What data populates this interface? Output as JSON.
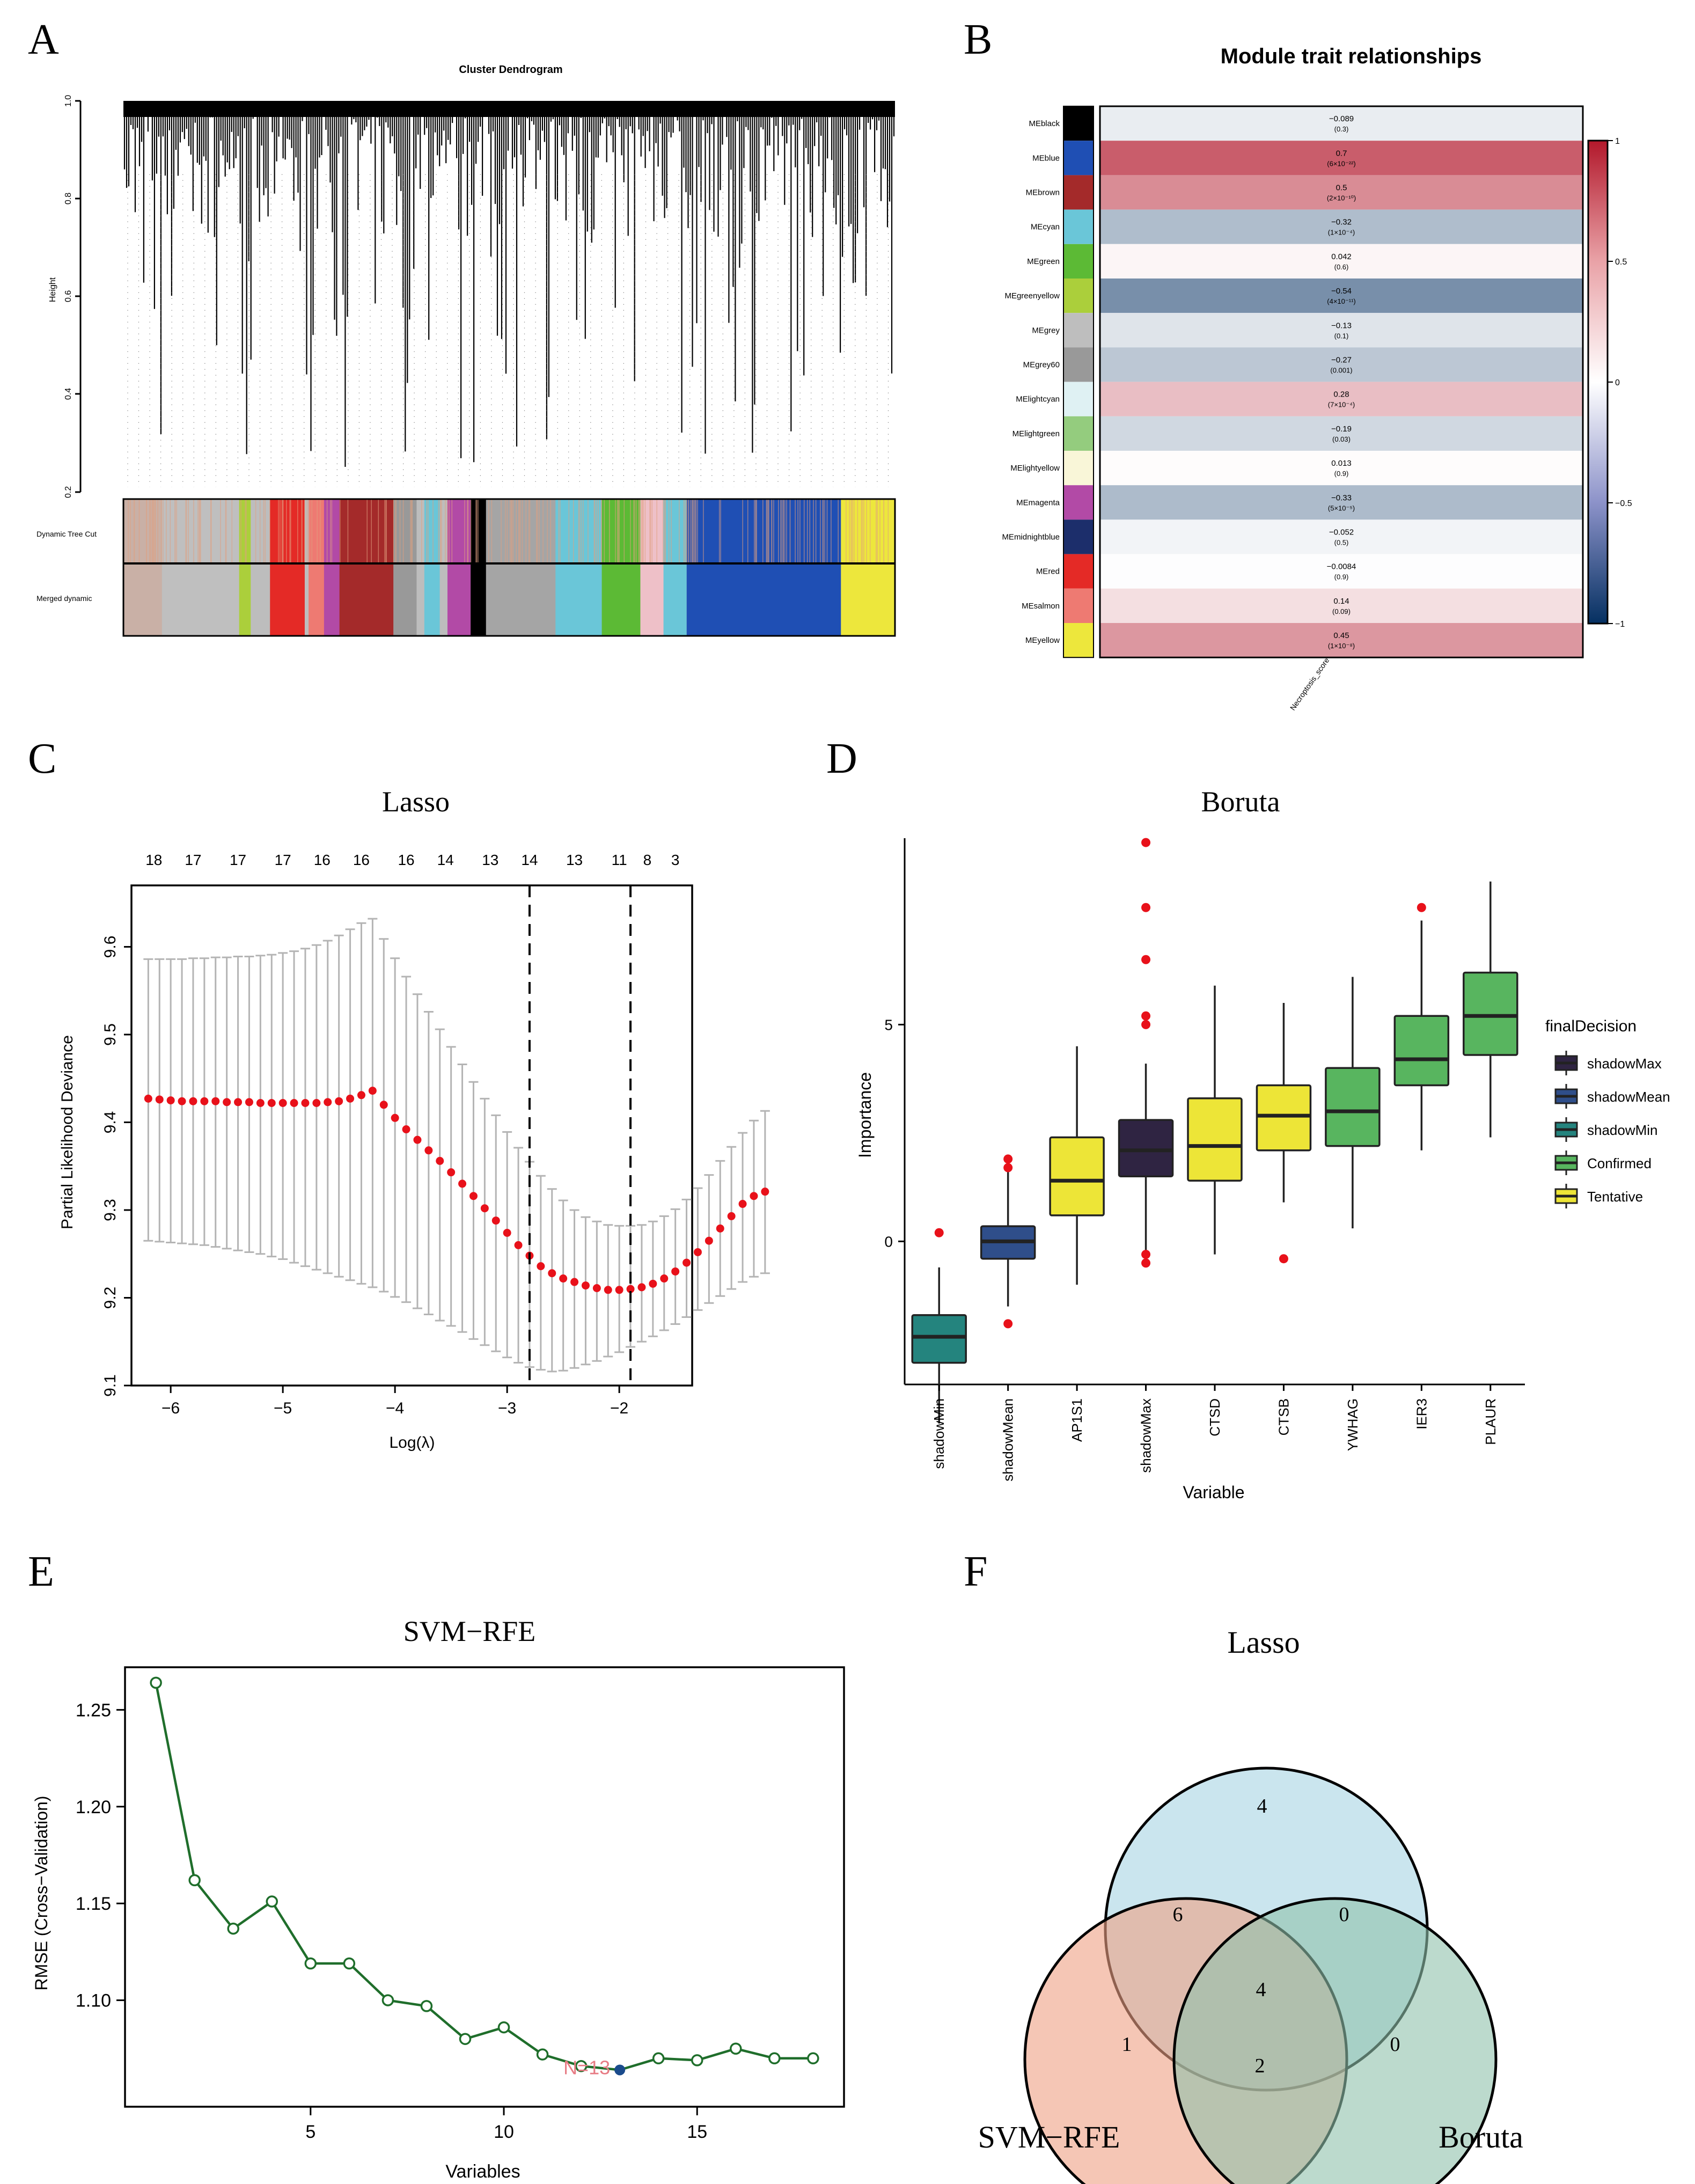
{
  "panels": {
    "A": {
      "letter": "A",
      "title": "Cluster Dendrogram",
      "ylabel": "Height",
      "yticks": [
        "1.0",
        "0.8",
        "0.6",
        "0.4",
        "0.2"
      ],
      "row_labels": [
        "Dynamic Tree Cut",
        "Merged dynamic"
      ]
    },
    "B": {
      "letter": "B",
      "title": "Module trait relationships",
      "xlabel": "Necroptosis_score",
      "colorbar_ticks": [
        "1",
        "0.5",
        "0",
        "−0.5",
        "−1"
      ]
    },
    "C": {
      "letter": "C",
      "title": "Lasso",
      "xlabel": "Log(λ)",
      "ylabel": "Partial Likelihood Deviance"
    },
    "D": {
      "letter": "D",
      "title": "Boruta",
      "xlabel": "Variable",
      "ylabel": "Importance",
      "legend_title": "finalDecision"
    },
    "E": {
      "letter": "E",
      "title": "SVM−RFE",
      "xlabel": "Variables",
      "ylabel": "RMSE (Cross−Validation)",
      "annotation": "N=13"
    },
    "F": {
      "letter": "F",
      "set_labels": [
        "Lasso",
        "SVM−RFE",
        "Boruta"
      ],
      "regions": {
        "lasso_only": "4",
        "lasso_svm": "6",
        "lasso_boruta": "0",
        "all": "4",
        "svm_only": "1",
        "svm_boruta": "2",
        "boruta_only": "0"
      },
      "colors": {
        "lasso": "#a6d3e3",
        "svm": "#eea083",
        "boruta": "#8fc1ab"
      }
    }
  },
  "chart_data": [
    {
      "id": "A",
      "type": "dendrogram",
      "title": "Cluster Dendrogram",
      "ylabel": "Height",
      "ylim": [
        0.2,
        1.0
      ],
      "color_rows": [
        "Dynamic Tree Cut",
        "Merged dynamic"
      ]
    },
    {
      "id": "B",
      "type": "heatmap",
      "title": "Module trait relationships",
      "xlabel": "Necroptosis_score",
      "colorbar": {
        "min": -1,
        "max": 1,
        "ticks": [
          1,
          0.5,
          0,
          -0.5,
          -1
        ]
      },
      "rows": [
        {
          "name": "MEblack",
          "color": "#000000",
          "value": -0.089,
          "corr": "−0.089",
          "p": "(0.3)"
        },
        {
          "name": "MEblue",
          "color": "#1f4fb4",
          "value": 0.7,
          "corr": "0.7",
          "p": "(6×10⁻²²)"
        },
        {
          "name": "MEbrown",
          "color": "#a42a2a",
          "value": 0.5,
          "corr": "0.5",
          "p": "(2×10⁻¹⁰)"
        },
        {
          "name": "MEcyan",
          "color": "#6ac6d8",
          "value": -0.32,
          "corr": "−0.32",
          "p": "(1×10⁻⁴)"
        },
        {
          "name": "MEgreen",
          "color": "#5cba35",
          "value": 0.042,
          "corr": "0.042",
          "p": "(0.6)"
        },
        {
          "name": "MEgreenyellow",
          "color": "#abcf3b",
          "value": -0.54,
          "corr": "−0.54",
          "p": "(4×10⁻¹¹)"
        },
        {
          "name": "MEgrey",
          "color": "#bebebe",
          "value": -0.13,
          "corr": "−0.13",
          "p": "(0.1)"
        },
        {
          "name": "MEgrey60",
          "color": "#999999",
          "value": -0.27,
          "corr": "−0.27",
          "p": "(0.001)"
        },
        {
          "name": "MElightcyan",
          "color": "#dff1f3",
          "value": 0.28,
          "corr": "0.28",
          "p": "(7×10⁻⁴)"
        },
        {
          "name": "MElightgreen",
          "color": "#94cc7e",
          "value": -0.19,
          "corr": "−0.19",
          "p": "(0.03)"
        },
        {
          "name": "MElightyellow",
          "color": "#f9f6d8",
          "value": 0.013,
          "corr": "0.013",
          "p": "(0.9)"
        },
        {
          "name": "MEmagenta",
          "color": "#b24aa6",
          "value": -0.33,
          "corr": "−0.33",
          "p": "(5×10⁻⁵)"
        },
        {
          "name": "MEmidnightblue",
          "color": "#1c2e6b",
          "value": -0.052,
          "corr": "−0.052",
          "p": "(0.5)"
        },
        {
          "name": "MEred",
          "color": "#e42a26",
          "value": -0.0084,
          "corr": "−0.0084",
          "p": "(0.9)"
        },
        {
          "name": "MEsalmon",
          "color": "#ee7a72",
          "value": 0.14,
          "corr": "0.14",
          "p": "(0.09)"
        },
        {
          "name": "MEyellow",
          "color": "#ede73c",
          "value": 0.45,
          "corr": "0.45",
          "p": "(1×10⁻⁸)"
        }
      ]
    },
    {
      "id": "C",
      "type": "line",
      "title": "Lasso",
      "xlabel": "Log(λ)",
      "ylabel": "Partial Likelihood Deviance",
      "xlim": [
        -6.35,
        -1.35
      ],
      "ylim": [
        9.1,
        9.67
      ],
      "xticks": [
        -6,
        -5,
        -4,
        -3,
        -2
      ],
      "yticks": [
        9.1,
        9.2,
        9.3,
        9.4,
        9.5,
        9.6
      ],
      "top_axis": {
        "positions": [
          -6.15,
          -5.8,
          -5.4,
          -5.0,
          -4.65,
          -4.3,
          -3.9,
          -3.55,
          -3.15,
          -2.8,
          -2.4,
          -2.0,
          -1.75,
          -1.5
        ],
        "labels": [
          "18",
          "17",
          "17",
          "17",
          "16",
          "16",
          "16",
          "14",
          "13",
          "14",
          "13",
          "11",
          "8",
          "3"
        ]
      },
      "vlines": [
        -2.8,
        -1.9
      ],
      "series": [
        {
          "name": "cv mean",
          "x_start": -6.2,
          "x_step": 0.1,
          "values": [
            9.427,
            9.426,
            9.425,
            9.424,
            9.424,
            9.424,
            9.424,
            9.423,
            9.423,
            9.423,
            9.422,
            9.422,
            9.422,
            9.422,
            9.422,
            9.422,
            9.423,
            9.424,
            9.427,
            9.431,
            9.436,
            9.42,
            9.405,
            9.392,
            9.38,
            9.368,
            9.356,
            9.343,
            9.33,
            9.316,
            9.302,
            9.288,
            9.274,
            9.26,
            9.248,
            9.236,
            9.228,
            9.222,
            9.218,
            9.214,
            9.211,
            9.209,
            9.209,
            9.21,
            9.212,
            9.216,
            9.222,
            9.23,
            9.24,
            9.252,
            9.265,
            9.279,
            9.293,
            9.307,
            9.316,
            9.321
          ],
          "upper": [
            9.586,
            9.586,
            9.586,
            9.586,
            9.587,
            9.587,
            9.588,
            9.588,
            9.589,
            9.589,
            9.59,
            9.591,
            9.593,
            9.595,
            9.598,
            9.602,
            9.607,
            9.613,
            9.62,
            9.627,
            9.632,
            9.609,
            9.587,
            9.566,
            9.546,
            9.526,
            9.506,
            9.486,
            9.466,
            9.446,
            9.427,
            9.408,
            9.389,
            9.371,
            9.355,
            9.339,
            9.324,
            9.311,
            9.3,
            9.292,
            9.287,
            9.283,
            9.282,
            9.282,
            9.283,
            9.287,
            9.293,
            9.301,
            9.312,
            9.325,
            9.34,
            9.356,
            9.372,
            9.388,
            9.402,
            9.413
          ],
          "lower": [
            9.265,
            9.264,
            9.263,
            9.262,
            9.261,
            9.26,
            9.258,
            9.256,
            9.254,
            9.252,
            9.25,
            9.247,
            9.244,
            9.24,
            9.236,
            9.232,
            9.228,
            9.224,
            9.22,
            9.216,
            9.212,
            9.207,
            9.201,
            9.195,
            9.188,
            9.181,
            9.174,
            9.168,
            9.161,
            9.153,
            9.146,
            9.139,
            9.132,
            9.126,
            9.121,
            9.118,
            9.116,
            9.117,
            9.12,
            9.124,
            9.128,
            9.133,
            9.138,
            9.144,
            9.15,
            9.156,
            9.163,
            9.17,
            9.178,
            9.186,
            9.194,
            9.202,
            9.21,
            9.218,
            9.224,
            9.228
          ]
        }
      ]
    },
    {
      "id": "D",
      "type": "box",
      "title": "Boruta",
      "xlabel": "Variable",
      "ylabel": "Importance",
      "ylim": [
        -3.3,
        9.3
      ],
      "yticks": [
        0,
        5
      ],
      "legend_title": "finalDecision",
      "legend": [
        {
          "label": "shadowMax",
          "color": "#2f2442"
        },
        {
          "label": "shadowMean",
          "color": "#2f4e8a"
        },
        {
          "label": "shadowMin",
          "color": "#24847e"
        },
        {
          "label": "Confirmed",
          "color": "#58b55f"
        },
        {
          "label": "Tentative",
          "color": "#ede537"
        }
      ],
      "boxes": [
        {
          "label": "shadowMin",
          "color": "#24847e",
          "whislo": -4.2,
          "q1": -2.8,
          "med": -2.2,
          "q3": -1.7,
          "whishi": -0.6,
          "outliers": [
            0.2
          ]
        },
        {
          "label": "shadowMean",
          "color": "#2f4e8a",
          "whislo": -1.5,
          "q1": -0.4,
          "med": 0.0,
          "q3": 0.35,
          "whishi": 1.6,
          "outliers": [
            1.7,
            1.9,
            -1.9
          ]
        },
        {
          "label": "AP1S1",
          "color": "#ede537",
          "whislo": -1.0,
          "q1": 0.6,
          "med": 1.4,
          "q3": 2.4,
          "whishi": 4.5,
          "outliers": []
        },
        {
          "label": "shadowMax",
          "color": "#2f2442",
          "whislo": -0.2,
          "q1": 1.5,
          "med": 2.1,
          "q3": 2.8,
          "whishi": 4.1,
          "outliers": [
            9.2,
            7.7,
            6.5,
            5.0,
            5.2,
            -0.3,
            -0.5
          ]
        },
        {
          "label": "CTSD",
          "color": "#ede537",
          "whislo": -0.3,
          "q1": 1.4,
          "med": 2.2,
          "q3": 3.3,
          "whishi": 5.9,
          "outliers": []
        },
        {
          "label": "CTSB",
          "color": "#ede537",
          "whislo": 0.9,
          "q1": 2.1,
          "med": 2.9,
          "q3": 3.6,
          "whishi": 5.5,
          "outliers": [
            -0.4
          ]
        },
        {
          "label": "YWHAG",
          "color": "#58b55f",
          "whislo": 0.3,
          "q1": 2.2,
          "med": 3.0,
          "q3": 4.0,
          "whishi": 6.1,
          "outliers": []
        },
        {
          "label": "IER3",
          "color": "#58b55f",
          "whislo": 2.1,
          "q1": 3.6,
          "med": 4.2,
          "q3": 5.2,
          "whishi": 7.4,
          "outliers": [
            7.7
          ]
        },
        {
          "label": "PLAUR",
          "color": "#58b55f",
          "whislo": 2.4,
          "q1": 4.3,
          "med": 5.2,
          "q3": 6.2,
          "whishi": 8.3,
          "outliers": []
        }
      ]
    },
    {
      "id": "E",
      "type": "line",
      "title": "SVM−RFE",
      "xlabel": "Variables",
      "ylabel": "RMSE (Cross−Validation)",
      "xlim": [
        0.2,
        18.8
      ],
      "ylim": [
        1.045,
        1.272
      ],
      "xticks": [
        5,
        10,
        15
      ],
      "yticks": [
        1.1,
        1.15,
        1.2,
        1.25
      ],
      "ytick_labels": [
        "1.10",
        "1.15",
        "1.20",
        "1.25"
      ],
      "best": {
        "x": 13,
        "label": "N=13"
      },
      "x": [
        1,
        2,
        3,
        4,
        5,
        6,
        7,
        8,
        9,
        10,
        11,
        12,
        13,
        14,
        15,
        16,
        17,
        18
      ],
      "values": [
        1.264,
        1.162,
        1.137,
        1.151,
        1.119,
        1.119,
        1.1,
        1.097,
        1.08,
        1.086,
        1.072,
        1.066,
        1.064,
        1.07,
        1.069,
        1.075,
        1.07,
        1.07
      ]
    },
    {
      "id": "F",
      "type": "venn",
      "sets": [
        "Lasso",
        "SVM−RFE",
        "Boruta"
      ],
      "regions": {
        "Lasso only": 4,
        "Lasso & SVM−RFE": 6,
        "Lasso & Boruta": 0,
        "All three": 4,
        "SVM−RFE only": 1,
        "SVM−RFE & Boruta": 2,
        "Boruta only": 0
      }
    }
  ]
}
